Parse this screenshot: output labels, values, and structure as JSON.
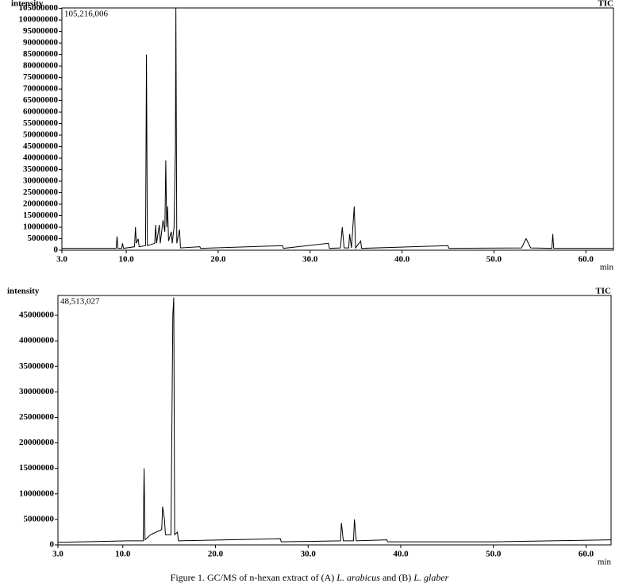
{
  "chart_data": [
    {
      "type": "line",
      "y_label": "intensity",
      "legend_label": "TIC",
      "x_label": "min",
      "annotation": "105,216,006",
      "xlim": [
        3,
        63
      ],
      "ylim": [
        0,
        105216006
      ],
      "xticks": [
        {
          "value": 3,
          "label": "3.0"
        },
        {
          "value": 10,
          "label": "10.0"
        },
        {
          "value": 20,
          "label": "20.0"
        },
        {
          "value": 30,
          "label": "30.0"
        },
        {
          "value": 40,
          "label": "40.0"
        },
        {
          "value": 50,
          "label": "50.0"
        },
        {
          "value": 60,
          "label": "60.0"
        }
      ],
      "yticks": [
        0,
        5000000,
        10000000,
        15000000,
        20000000,
        25000000,
        30000000,
        35000000,
        40000000,
        45000000,
        50000000,
        55000000,
        60000000,
        65000000,
        70000000,
        75000000,
        80000000,
        85000000,
        90000000,
        95000000,
        100000000,
        105000000
      ],
      "series": [
        {
          "color": "#000000",
          "x": [
            3.0,
            8.9,
            9.0,
            9.1,
            9.5,
            9.6,
            9.7,
            10.9,
            11.0,
            11.1,
            11.3,
            11.4,
            12.1,
            12.2,
            12.3,
            13.1,
            13.2,
            13.3,
            13.6,
            13.7,
            14.0,
            14.2,
            14.3,
            14.4,
            14.5,
            14.6,
            14.9,
            15.0,
            15.2,
            15.35,
            15.4,
            15.5,
            15.8,
            15.9,
            18.0,
            18.1,
            27.0,
            27.1,
            32.0,
            32.1,
            33.3,
            33.5,
            33.7,
            34.2,
            34.3,
            34.5,
            34.8,
            34.95,
            35.5,
            35.6,
            45.0,
            45.1,
            53.0,
            53.5,
            54.0,
            56.3,
            56.4,
            56.5,
            63.0
          ],
          "values": [
            800000,
            800000,
            6000000,
            800000,
            800000,
            3000000,
            800000,
            1500000,
            10000000,
            3000000,
            5000000,
            1500000,
            2000000,
            85000000,
            2000000,
            3000000,
            11000000,
            3000000,
            11000000,
            3000000,
            13000000,
            8000000,
            39000000,
            10000000,
            19000000,
            4000000,
            8000000,
            3000000,
            10000000,
            45000000,
            105216006,
            3000000,
            9000000,
            1000000,
            1500000,
            800000,
            2000000,
            800000,
            3000000,
            800000,
            1000000,
            10000000,
            1000000,
            1000000,
            7000000,
            1000000,
            19000000,
            1000000,
            4000000,
            800000,
            2000000,
            800000,
            1000000,
            5000000,
            1000000,
            800000,
            7000000,
            800000,
            800000
          ]
        }
      ]
    },
    {
      "type": "line",
      "y_label": "intensity",
      "legend_label": "TIC",
      "x_label": "min",
      "annotation": "48,513,027",
      "xlim": [
        3,
        62.7
      ],
      "ylim": [
        0,
        48900000
      ],
      "xticks": [
        {
          "value": 3,
          "label": "3.0"
        },
        {
          "value": 10,
          "label": "10.0"
        },
        {
          "value": 20,
          "label": "20.0"
        },
        {
          "value": 30,
          "label": "30.0"
        },
        {
          "value": 40,
          "label": "40.0"
        },
        {
          "value": 50,
          "label": "50.0"
        },
        {
          "value": 60,
          "label": "60.0"
        }
      ],
      "yticks": [
        0,
        5000000,
        10000000,
        15000000,
        20000000,
        25000000,
        30000000,
        35000000,
        40000000,
        45000000
      ],
      "series": [
        {
          "color": "#000000",
          "x": [
            3.0,
            10.5,
            12.2,
            12.3,
            12.4,
            13.0,
            14.2,
            14.3,
            14.5,
            14.6,
            15.2,
            15.4,
            15.5,
            15.6,
            15.9,
            16.0,
            27.0,
            27.1,
            33.5,
            33.6,
            33.8,
            34.9,
            35.0,
            35.2,
            38.5,
            38.6,
            50.0,
            62.7
          ],
          "values": [
            500000,
            800000,
            800000,
            15000000,
            1000000,
            2000000,
            3000000,
            7500000,
            5000000,
            2000000,
            2000000,
            45000000,
            48513027,
            2000000,
            2500000,
            800000,
            1200000,
            600000,
            800000,
            4300000,
            800000,
            800000,
            5000000,
            800000,
            1000000,
            600000,
            600000,
            1000000
          ]
        }
      ]
    }
  ],
  "caption": [
    "Figure 1. GC/MS of n-hexan extract of (A) ",
    "L. arabicus",
    " and (B) ",
    "L. glaber"
  ]
}
